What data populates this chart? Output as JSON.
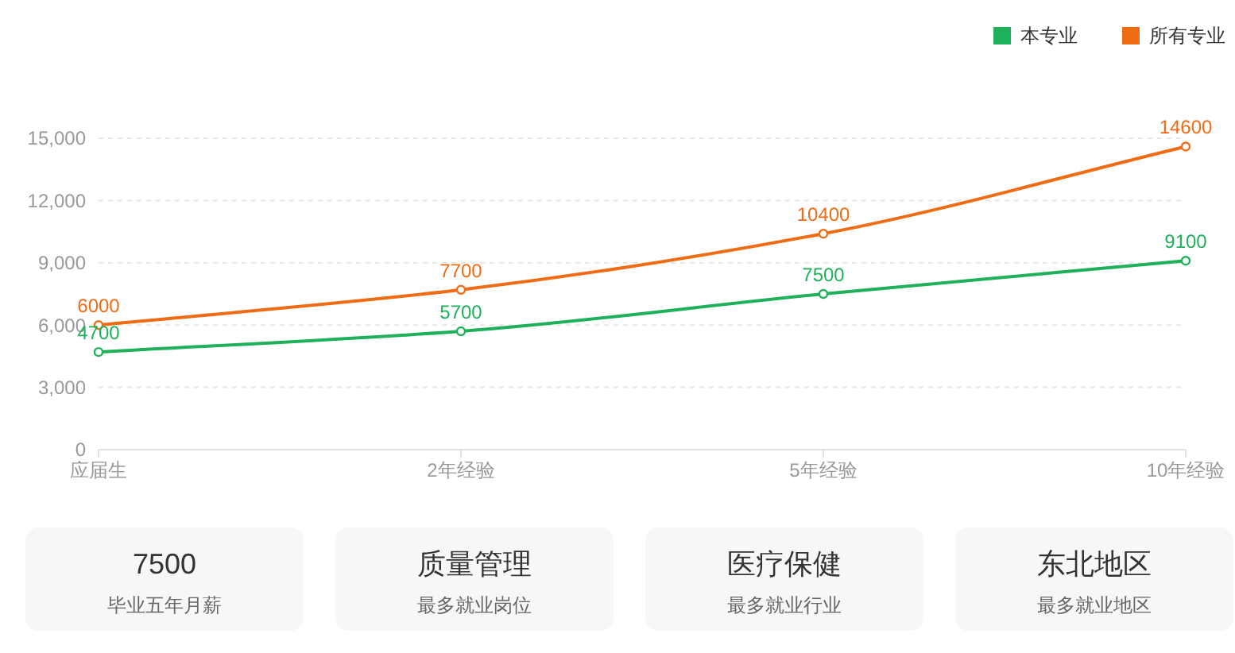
{
  "chart_data": [
    {
      "type": "line",
      "categories": [
        "应届生",
        "2年经验",
        "5年经验",
        "10年经验"
      ],
      "series": [
        {
          "name": "本专业",
          "color": "#1fb05a",
          "values": [
            4700,
            5700,
            7500,
            9100
          ]
        },
        {
          "name": "所有专业",
          "color": "#f06c14",
          "values": [
            6000,
            7700,
            10400,
            14600
          ]
        }
      ],
      "ylim": [
        0,
        15000
      ],
      "yticks": [
        0,
        {
          "value": 3000,
          "label": "3,000"
        },
        {
          "value": 6000,
          "label": "6,000"
        },
        {
          "value": 9000,
          "label": "9,000"
        },
        {
          "value": 12000,
          "label": "12,000"
        },
        {
          "value": 15000,
          "label": "15,000"
        }
      ],
      "grid": "y",
      "legend": "top right",
      "marker": "circle",
      "line_style": "solid",
      "data_labels": true
    },
    {
      "type": "other",
      "annotations": [
        "7500",
        "毕业五年月薪",
        "质量管理",
        "最多就业岗位",
        "医疗保健",
        "最多就业行业",
        "东北地区",
        "最多就业地区"
      ]
    }
  ]
}
